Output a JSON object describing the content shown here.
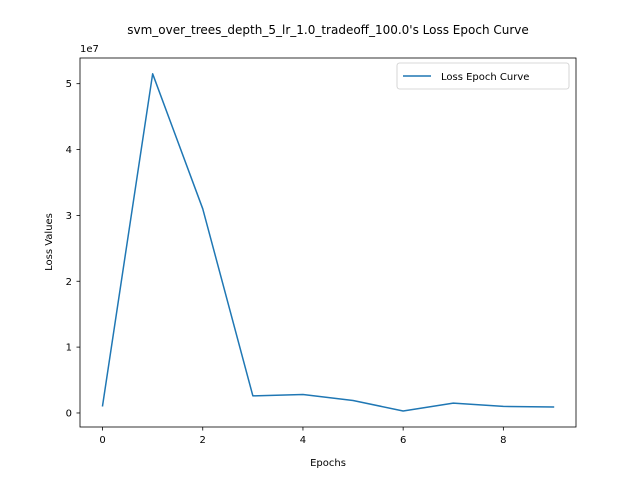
{
  "chart_data": {
    "type": "line",
    "title": "svm_over_trees_depth_5_lr_1.0_tradeoff_100.0's Loss Epoch Curve",
    "xlabel": "Epochs",
    "ylabel": "Loss Values",
    "y_offset_label": "1e7",
    "xlim": [
      -0.45,
      9.45
    ],
    "ylim": [
      -2130000,
      53900000
    ],
    "x_ticks": [
      0,
      2,
      4,
      6,
      8
    ],
    "y_ticks": [
      0,
      10000000,
      20000000,
      30000000,
      40000000,
      50000000
    ],
    "y_tick_labels": [
      "0",
      "1",
      "2",
      "3",
      "4",
      "5"
    ],
    "legend_position": "top-right",
    "grid": false,
    "series": [
      {
        "name": "Loss Epoch Curve",
        "color": "#1f77b4",
        "x": [
          0,
          1,
          2,
          3,
          4,
          5,
          6,
          7,
          8,
          9
        ],
        "values": [
          1100000,
          51500000,
          31000000,
          2600000,
          2800000,
          1900000,
          300000,
          1500000,
          1000000,
          900000
        ]
      }
    ]
  }
}
